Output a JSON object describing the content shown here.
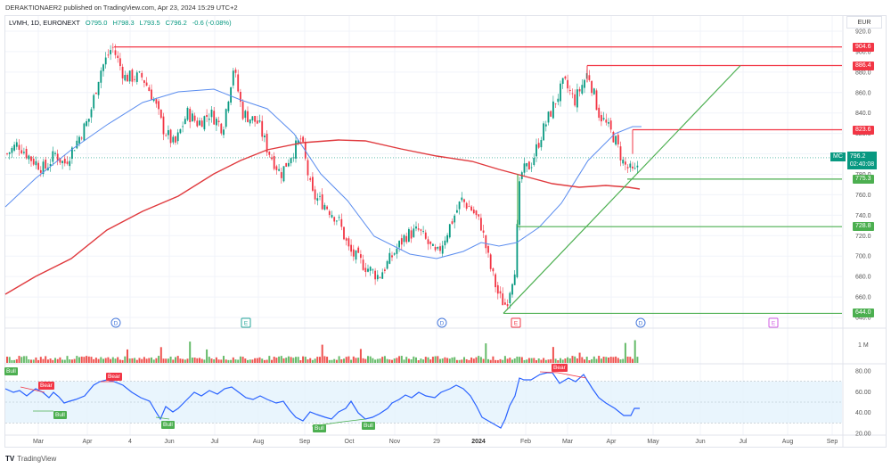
{
  "header": {
    "publisher_line": "DERAKTIONAER2 published on TradingView.com, Apr 23, 2024 15:29 UTC+2",
    "symbol_line": "LVMH, 1D, EURONEXT",
    "open": "O795.0",
    "high": "H798.3",
    "low": "L793.5",
    "close": "C796.2",
    "change": "-0.6 (-0.08%)",
    "currency": "EUR"
  },
  "price_scale": {
    "ticks": [
      "920.0",
      "900.0",
      "880.0",
      "860.0",
      "840.0",
      "820.0",
      "800.0",
      "780.0",
      "760.0",
      "740.0",
      "720.0",
      "700.0",
      "680.0",
      "660.0",
      "640.0"
    ],
    "levels": [
      {
        "label": "904.6",
        "color": "red"
      },
      {
        "label": "886.4",
        "color": "red"
      },
      {
        "label": "823.6",
        "color": "red"
      },
      {
        "label": "775.3",
        "color": "green"
      },
      {
        "label": "728.8",
        "color": "green"
      },
      {
        "label": "644.0",
        "color": "green"
      }
    ],
    "current": {
      "symbol": "MC",
      "price": "796.2",
      "countdown": "02:40:08"
    }
  },
  "volume_scale": {
    "ticks": [
      "1 M"
    ]
  },
  "rsi_scale": {
    "ticks": [
      "80.00",
      "60.00",
      "40.00",
      "20.00"
    ]
  },
  "time_axis": {
    "labels": [
      "Mar",
      "Apr",
      "4",
      "Jun",
      "Jul",
      "Aug",
      "Sep",
      "Oct",
      "Nov",
      "29",
      "2024",
      "Feb",
      "Mar",
      "Apr",
      "May",
      "Jun",
      "Jul",
      "Aug",
      "Sep"
    ]
  },
  "events": [
    {
      "type": "D",
      "label": "D"
    },
    {
      "type": "E",
      "label": "E"
    },
    {
      "type": "D",
      "label": "D"
    },
    {
      "type": "E",
      "label": "E"
    },
    {
      "type": "D",
      "label": "D"
    },
    {
      "type": "E",
      "label": "E"
    }
  ],
  "rsi_badges": [
    {
      "type": "bear",
      "label": "Bear"
    },
    {
      "type": "bear",
      "label": "Bear"
    },
    {
      "type": "bull",
      "label": "Bull"
    },
    {
      "type": "bull",
      "label": "Bull"
    },
    {
      "type": "bull",
      "label": "Bull"
    },
    {
      "type": "bull",
      "label": "Bull"
    },
    {
      "type": "bull",
      "label": "Bull"
    },
    {
      "type": "bear",
      "label": "Bear"
    },
    {
      "type": "bear",
      "label": "Bear"
    },
    {
      "type": "bear",
      "label": "Bear"
    }
  ],
  "footer": {
    "brand": "TradingView",
    "logo": "TV"
  },
  "chart_data": {
    "type": "candlestick",
    "title": "LVMH, 1D, EURONEXT",
    "xlabel": "",
    "ylabel": "EUR",
    "ylim": [
      635,
      925
    ],
    "grid": true,
    "x": [
      "Mar 2023",
      "Apr 2023",
      "Apr 4",
      "Jun 2023",
      "Jul 2023",
      "Aug 2023",
      "Sep 2023",
      "Oct 2023",
      "Nov 2023",
      "Dec 29",
      "2024",
      "Feb 2024",
      "Mar 2024",
      "Apr 2024"
    ],
    "series": [
      {
        "name": "Close (approx)",
        "values": [
          800,
          880,
          875,
          815,
          880,
          830,
          770,
          670,
          700,
          745,
          660,
          820,
          870,
          796.2
        ]
      },
      {
        "name": "SMA 50 (blue)",
        "values": [
          745,
          790,
          830,
          855,
          860,
          855,
          830,
          745,
          705,
          720,
          715,
          760,
          820,
          826
        ]
      },
      {
        "name": "SMA 200 (red)",
        "values": [
          658,
          700,
          740,
          775,
          795,
          808,
          812,
          810,
          800,
          790,
          772,
          770,
          765,
          762
        ]
      }
    ],
    "horizontal_levels": [
      {
        "price": 904.6,
        "color": "#f23645"
      },
      {
        "price": 886.4,
        "color": "#f23645"
      },
      {
        "price": 823.6,
        "color": "#f23645"
      },
      {
        "price": 775.3,
        "color": "#4caf50"
      },
      {
        "price": 728.8,
        "color": "#4caf50"
      },
      {
        "price": 644.0,
        "color": "#4caf50"
      }
    ],
    "trendline": {
      "from": {
        "x": "Jan 2024",
        "price": 644
      },
      "to": {
        "x": "Jul 2024",
        "price": 886
      },
      "color": "#4caf50"
    },
    "last": {
      "open": 795.0,
      "high": 798.3,
      "low": 793.5,
      "close": 796.2,
      "change": -0.6,
      "change_pct": -0.08
    },
    "rsi": {
      "ylim": [
        15,
        85
      ],
      "band": [
        30,
        70
      ],
      "ticks": [
        20,
        40,
        60,
        80
      ],
      "last": 44
    },
    "colors": {
      "up": "#089981",
      "down": "#f23645",
      "sma50": "#5b8def",
      "sma200": "#e03a3e",
      "rsi": "#2962ff"
    }
  }
}
